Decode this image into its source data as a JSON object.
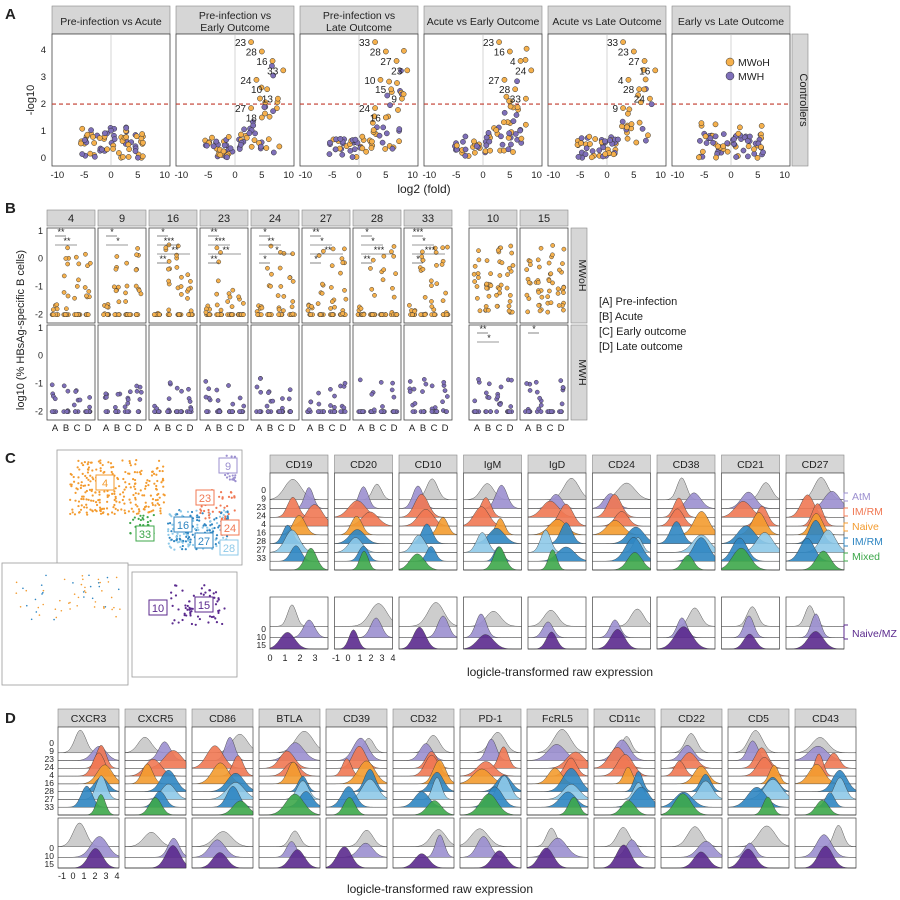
{
  "panel_labels": [
    "A",
    "B",
    "C",
    "D"
  ],
  "colors": {
    "mwoh": "#f5b04c",
    "mwh": "#7e6fb9",
    "threshold": "#c0392b",
    "strip": "#d6d6d6",
    "grey": "#c8c8c8",
    "atm": "#9b8fcf",
    "imrm_red": "#f07853",
    "naive": "#f39b2f",
    "imrm_blue": "#2f86c2",
    "light_blue": "#8ec9e8",
    "mixed": "#3da74a",
    "naivemz": "#5b2a8e"
  },
  "panelA": {
    "y_label": "-log10",
    "x_label": "log2 (fold)",
    "row_label": "Controllers",
    "facets": [
      "Pre-infection vs Acute",
      "Pre-infection vs\nEarly Outcome",
      "Pre-infection vs\nLate Outcome",
      "Acute vs Early Outcome",
      "Acute vs Late Outcome",
      "Early vs Late Outcome"
    ],
    "x_ticks": [
      "-10",
      "-5",
      "0",
      "5",
      "10"
    ],
    "y_ticks": [
      "0",
      "1",
      "2",
      "3",
      "4"
    ],
    "legend": [
      "MWoH",
      "MWH"
    ],
    "threshold": 2,
    "cluster_labels": [
      [],
      [
        "23",
        "28",
        "16",
        "33",
        "24",
        "10",
        "13",
        "27",
        "18"
      ],
      [
        "33",
        "28",
        "27",
        "23",
        "10",
        "15",
        "9",
        "24",
        "16"
      ],
      [
        "23",
        "16",
        "4",
        "24",
        "27",
        "28",
        "33"
      ],
      [
        "33",
        "23",
        "27",
        "16",
        "4",
        "28",
        "24",
        "9"
      ],
      []
    ]
  },
  "panelB": {
    "y_label": "log10 (% HBsAg-specific B cells)",
    "facets_left": [
      "4",
      "9",
      "16",
      "23",
      "24",
      "27",
      "28",
      "33"
    ],
    "facets_right": [
      "10",
      "15"
    ],
    "row_labels": [
      "MWoH",
      "MWH"
    ],
    "x_ticks": [
      "A",
      "B",
      "C",
      "D"
    ],
    "y_ticks": [
      "-2",
      "-1",
      "0",
      "1"
    ],
    "legend": [
      "[A] Pre-infection",
      "[B] Acute",
      "[C] Early outcome",
      "[D] Late outcome"
    ],
    "sig_top": [
      [
        "**",
        "**"
      ],
      [
        "*",
        "*"
      ],
      [
        "*",
        "***",
        "**",
        "**"
      ],
      [
        "**",
        "***",
        "**",
        "**"
      ],
      [
        "*",
        "**",
        "*",
        "*"
      ],
      [
        "**",
        "*",
        "**",
        "*"
      ],
      [
        "*",
        "*",
        "***",
        "**"
      ],
      [
        "***",
        "*",
        "***",
        "*"
      ],
      [],
      []
    ],
    "sig_bottom": [
      [],
      [],
      [],
      [],
      [],
      [],
      [],
      [],
      [
        "**",
        "*"
      ],
      [
        "*"
      ]
    ]
  },
  "panelC": {
    "markers": [
      "CD19",
      "CD20",
      "CD10",
      "IgM",
      "IgD",
      "CD24",
      "CD38",
      "CD21",
      "CD27"
    ],
    "row_ticks_top": [
      "0",
      "9",
      "23",
      "24",
      "4",
      "16",
      "28",
      "27",
      "33"
    ],
    "row_ticks_bottom": [
      "0",
      "10",
      "15"
    ],
    "x_label": "logicle-transformed raw expression",
    "x_ticks": [
      "0",
      "1",
      "2",
      "3",
      "-1",
      "0",
      "1",
      "2",
      "3",
      "4"
    ],
    "legend": [
      "AtM",
      "IM/RM",
      "Naive",
      "IM/RM",
      "Mixed"
    ],
    "legend_bottom": "Naive/MZ",
    "umap_labels": [
      "4",
      "9",
      "23",
      "24",
      "16",
      "27",
      "28",
      "33"
    ],
    "umap_small_labels": [
      "10",
      "15"
    ]
  },
  "panelD": {
    "markers": [
      "CXCR3",
      "CXCR5",
      "CD86",
      "BTLA",
      "CD39",
      "CD32",
      "PD-1",
      "FcRL5",
      "CD11c",
      "CD22",
      "CD5",
      "CD43"
    ],
    "row_ticks_top": [
      "0",
      "9",
      "23",
      "24",
      "4",
      "16",
      "28",
      "27",
      "33"
    ],
    "row_ticks_bottom": [
      "0",
      "10",
      "15"
    ],
    "x_label": "logicle-transformed raw expression",
    "x_ticks": [
      "-1",
      "0",
      "1",
      "2",
      "3",
      "4"
    ]
  }
}
